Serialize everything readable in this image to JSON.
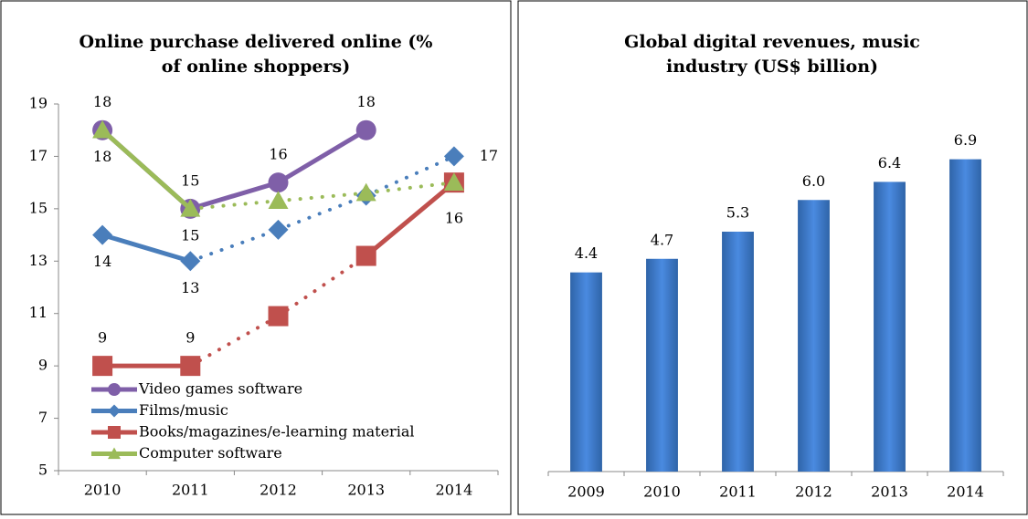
{
  "charts": [
    {
      "chart_data": {
        "type": "line",
        "title": [
          "Online purchase delivered online (%",
          "of online shoppers)"
        ],
        "categories": [
          "2010",
          "2011",
          "2012",
          "2013",
          "2014"
        ],
        "ylim": [
          5,
          19
        ],
        "yticks": [
          5,
          7,
          9,
          11,
          13,
          15,
          17,
          19
        ],
        "legend": "lower-left",
        "series": [
          {
            "name": "Video games software",
            "color": "#7f5fa8",
            "marker": "circle",
            "values": [
              18,
              15,
              16,
              18,
              null
            ],
            "value_labels": [
              "18",
              "15",
              "16",
              "18",
              null
            ],
            "segment_styles": [
              "solid",
              "solid",
              "solid",
              null
            ]
          },
          {
            "name": "Films/music",
            "color": "#4a7ebb",
            "marker": "diamond",
            "values": [
              14,
              13,
              14.2,
              15.5,
              17
            ],
            "value_labels": [
              "14",
              "13",
              null,
              null,
              "17"
            ],
            "segment_styles": [
              "solid",
              "dotted",
              "dotted",
              "dotted"
            ]
          },
          {
            "name": "Books/magazines/e-learning material",
            "color": "#c0504d",
            "marker": "square",
            "values": [
              9,
              9,
              10.9,
              13.2,
              16
            ],
            "value_labels": [
              "9",
              "9",
              null,
              null,
              "16"
            ],
            "segment_styles": [
              "solid",
              "dotted",
              "dotted",
              "solid"
            ]
          },
          {
            "name": "Computer software",
            "color": "#9bbb59",
            "marker": "triangle",
            "values": [
              18,
              15,
              15.3,
              15.6,
              16
            ],
            "value_labels": [
              "18",
              "15",
              null,
              null,
              null
            ],
            "segment_styles": [
              "solid",
              "dotted",
              "dotted",
              "dotted"
            ]
          }
        ]
      }
    },
    {
      "chart_data": {
        "type": "bar",
        "title": [
          "Global digital revenues, music",
          "industry (US$ billion)"
        ],
        "categories": [
          "2009",
          "2010",
          "2011",
          "2012",
          "2013",
          "2014"
        ],
        "values": [
          4.4,
          4.7,
          5.3,
          6.0,
          6.4,
          6.9
        ],
        "value_labels": [
          "4.4",
          "4.7",
          "5.3",
          "6.0",
          "6.4",
          "6.9"
        ],
        "color": "#3f7fcf",
        "ylim": [
          0,
          8
        ]
      }
    }
  ]
}
